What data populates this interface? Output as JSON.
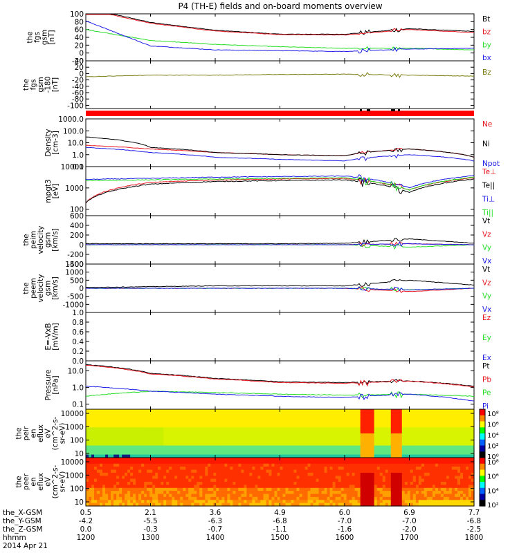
{
  "title": "P4 (TH-E) fields and on-board moments overview",
  "colors": {
    "black": "#000000",
    "red": "#e8141e",
    "green": "#22dd22",
    "blue": "#1a1ae6",
    "olive": "#7a7a10"
  },
  "panels": [
    {
      "id": "fgs",
      "ylabel": [
        "the",
        "fgs",
        "gsm",
        "[nT]"
      ],
      "ticks": [
        "100",
        "80",
        "60",
        "40",
        "20",
        "0",
        "-20"
      ],
      "tick_values": [
        100,
        80,
        60,
        40,
        20,
        0,
        -20
      ],
      "scale": "linear",
      "ylim": [
        -20,
        100
      ],
      "legend": [
        {
          "name": "Bt",
          "color": "#000000"
        },
        {
          "name": "bz",
          "color": "#e8141e"
        },
        {
          "name": "by",
          "color": "#22dd22"
        },
        {
          "name": "bx",
          "color": "#1a1ae6"
        }
      ]
    },
    {
      "id": "fgs_clock",
      "ylabel": [
        "the",
        "fgs",
        "gsm",
        "-180",
        "[nT]"
      ],
      "ticks": [
        "40",
        "20",
        "0",
        "-20",
        "-40",
        "-60",
        "-80",
        "-100"
      ],
      "tick_values": [
        40,
        20,
        0,
        -20,
        -40,
        -60,
        -80,
        -100
      ],
      "scale": "linear",
      "ylim": [
        -110,
        40
      ],
      "legend": [
        {
          "name": "Bz",
          "color": "#7a7a10"
        }
      ]
    },
    {
      "id": "density",
      "ylabel": [
        "Density",
        "[cm-3]"
      ],
      "ticks": [
        "1000.0",
        "100.0",
        "10.0",
        "1.0",
        "0.1"
      ],
      "tick_values": [
        1000,
        100,
        10,
        1,
        0.1
      ],
      "scale": "log",
      "ylim": [
        0.1,
        1000
      ],
      "legend": [
        {
          "name": "Ne",
          "color": "#e8141e"
        },
        {
          "name": "Ni",
          "color": "#000000"
        },
        {
          "name": "Npot",
          "color": "#1a1ae6"
        }
      ]
    },
    {
      "id": "temperature",
      "ylabel": [
        "mpgt3",
        "[eV]"
      ],
      "ticks": [
        "10000",
        "1000",
        "100"
      ],
      "tick_values": [
        10000,
        1000,
        100
      ],
      "scale": "log",
      "ylim": [
        50,
        10000
      ],
      "legend": [
        {
          "name": "Te⊥",
          "color": "#e8141e"
        },
        {
          "name": "Te||",
          "color": "#000000"
        },
        {
          "name": "Ti⊥",
          "color": "#1a1ae6"
        },
        {
          "name": "Ti||",
          "color": "#22dd22"
        }
      ]
    },
    {
      "id": "ion_velocity",
      "ylabel": [
        "the",
        "peim",
        "velocity",
        "gsm",
        "[km/s]"
      ],
      "ticks": [
        "600",
        "400",
        "200",
        "0",
        "-200",
        "-400"
      ],
      "tick_values": [
        600,
        400,
        200,
        0,
        -200,
        -400
      ],
      "scale": "linear",
      "ylim": [
        -400,
        600
      ],
      "legend": [
        {
          "name": "Vt",
          "color": "#000000"
        },
        {
          "name": "Vz",
          "color": "#e8141e"
        },
        {
          "name": "Vy",
          "color": "#22dd22"
        },
        {
          "name": "Vx",
          "color": "#1a1ae6"
        }
      ]
    },
    {
      "id": "electron_velocity",
      "ylabel": [
        "the",
        "peem",
        "velocity",
        "gsm",
        "[km/s]"
      ],
      "ticks": [
        "1500",
        "1000",
        "500",
        "0",
        "-500",
        "-1000"
      ],
      "tick_values": [
        1500,
        1000,
        500,
        0,
        -500,
        -1000
      ],
      "scale": "linear",
      "ylim": [
        -1500,
        1500
      ],
      "legend": [
        {
          "name": "Vt",
          "color": "#000000"
        },
        {
          "name": "Vz",
          "color": "#e8141e"
        },
        {
          "name": "Vy",
          "color": "#22dd22"
        },
        {
          "name": "Vx",
          "color": "#1a1ae6"
        }
      ]
    },
    {
      "id": "efield",
      "ylabel": [
        "E=-VxB",
        "[mV/m]"
      ],
      "ticks": [
        "1.0",
        "0.8",
        "0.6",
        "0.4",
        "0.2",
        "0.0"
      ],
      "tick_values": [
        1,
        0.8,
        0.6,
        0.4,
        0.2,
        0
      ],
      "scale": "linear",
      "ylim": [
        0,
        1
      ],
      "legend": [
        {
          "name": "Ez",
          "color": "#e8141e"
        },
        {
          "name": "Ey",
          "color": "#22dd22"
        },
        {
          "name": "Ex",
          "color": "#1a1ae6"
        }
      ]
    },
    {
      "id": "pressure",
      "ylabel": [
        "Pressure",
        "[nPa]"
      ],
      "ticks": [
        "10.0",
        "1.0",
        "0.1"
      ],
      "tick_values": [
        10,
        1,
        0.1
      ],
      "scale": "log",
      "ylim": [
        0.05,
        40
      ],
      "legend": [
        {
          "name": "Pt",
          "color": "#000000"
        },
        {
          "name": "Pb",
          "color": "#e8141e"
        },
        {
          "name": "Pe",
          "color": "#22dd22"
        },
        {
          "name": "Pi",
          "color": "#1a1ae6"
        }
      ]
    },
    {
      "id": "ion_spec",
      "ylabel": [
        "the",
        "peir",
        "en",
        "eflux",
        "eV",
        "(cm^2-s-",
        "sr-eV)"
      ],
      "ticks": [
        "10000",
        "1000",
        "100",
        "10"
      ],
      "tick_values": [
        10000,
        1000,
        100,
        10
      ],
      "scale": "log",
      "colorbar": [
        "10⁸",
        "10⁶",
        "10⁴",
        "10²",
        "10⁰"
      ]
    },
    {
      "id": "electron_spec",
      "ylabel": [
        "the",
        "peer",
        "en",
        "eflux",
        "eV",
        "(cm^2-s-",
        "sr-eV)"
      ],
      "ticks": [
        "10000",
        "1000",
        "100",
        "10"
      ],
      "tick_values": [
        10000,
        1000,
        100,
        10
      ],
      "scale": "log",
      "colorbar": [
        "10⁸",
        "10⁶",
        "10⁴",
        "10²"
      ]
    }
  ],
  "xaxis": {
    "rows": [
      {
        "label": "the_X-GSM",
        "values": [
          "0.5",
          "2.1",
          "3.6",
          "4.9",
          "6.0",
          "6.9",
          "7.7"
        ]
      },
      {
        "label": "the_Y-GSM",
        "values": [
          "-4.2",
          "-5.5",
          "-6.3",
          "-6.8",
          "-7.0",
          "-7.0",
          "-6.8"
        ]
      },
      {
        "label": "the_Z-GSM",
        "values": [
          "0.0",
          "-0.3",
          "-0.7",
          "-1.1",
          "-1.6",
          "-2.0",
          "-2.5"
        ]
      },
      {
        "label": "hhmm",
        "values": [
          "1200",
          "1300",
          "1400",
          "1500",
          "1600",
          "1700",
          "1800"
        ]
      }
    ],
    "date": "2014 Apr 21",
    "time_range": [
      1200,
      1800
    ]
  },
  "chart_data": {
    "type": "line",
    "title": "P4 (TH-E) fields and on-board moments overview",
    "x": [
      1200,
      1300,
      1400,
      1500,
      1600,
      1700,
      1800
    ],
    "xlabel": "hhmm",
    "panels": [
      {
        "id": "fgs",
        "series": [
          {
            "name": "Bt",
            "values": [
              115,
              78,
              58,
              48,
              48,
              62,
              55
            ]
          },
          {
            "name": "bz",
            "values": [
              112,
              76,
              56,
              47,
              46,
              60,
              52
            ]
          },
          {
            "name": "by",
            "values": [
              60,
              32,
              22,
              16,
              12,
              12,
              8
            ]
          },
          {
            "name": "bx",
            "values": [
              82,
              18,
              8,
              6,
              4,
              10,
              12
            ]
          }
        ]
      },
      {
        "id": "fgs_clock",
        "series": [
          {
            "name": "Bz",
            "values": [
              -10,
              -5,
              -5,
              -3,
              -2,
              -5,
              -8
            ]
          }
        ]
      },
      {
        "id": "density",
        "series": [
          {
            "name": "Ne",
            "values": [
              6,
              3,
              1.5,
              1.0,
              0.8,
              3,
              0.6
            ]
          },
          {
            "name": "Ni",
            "values": [
              30,
              4,
              1.5,
              1.0,
              0.8,
              3,
              0.6
            ]
          },
          {
            "name": "Npot",
            "values": [
              4,
              1.5,
              0.6,
              0.4,
              0.3,
              1,
              0.3
            ]
          }
        ]
      },
      {
        "id": "temperature",
        "series": [
          {
            "name": "Te⊥",
            "values": [
              200,
              1800,
              2400,
              2600,
              2800,
              800,
              3000
            ]
          },
          {
            "name": "Te||",
            "values": [
              200,
              1500,
              2000,
              2200,
              2400,
              600,
              2600
            ]
          },
          {
            "name": "Ti⊥",
            "values": [
              2500,
              2800,
              3200,
              3400,
              3600,
              1000,
              3800
            ]
          },
          {
            "name": "Ti||",
            "values": [
              2200,
              2400,
              2600,
              2800,
              3000,
              800,
              3200
            ]
          }
        ]
      },
      {
        "id": "ion_velocity",
        "series": [
          {
            "name": "Vt",
            "values": [
              20,
              20,
              20,
              20,
              30,
              120,
              30
            ]
          },
          {
            "name": "Vz",
            "values": [
              0,
              0,
              0,
              0,
              0,
              20,
              0
            ]
          },
          {
            "name": "Vy",
            "values": [
              0,
              0,
              0,
              0,
              0,
              -50,
              0
            ]
          },
          {
            "name": "Vx",
            "values": [
              0,
              0,
              0,
              0,
              0,
              20,
              0
            ]
          }
        ]
      },
      {
        "id": "electron_velocity",
        "series": [
          {
            "name": "Vt",
            "values": [
              50,
              100,
              150,
              150,
              150,
              500,
              200
            ]
          },
          {
            "name": "Vz",
            "values": [
              0,
              0,
              0,
              0,
              0,
              -200,
              0
            ]
          },
          {
            "name": "Vy",
            "values": [
              0,
              0,
              0,
              0,
              0,
              -100,
              0
            ]
          },
          {
            "name": "Vx",
            "values": [
              0,
              0,
              0,
              0,
              0,
              -100,
              0
            ]
          }
        ]
      },
      {
        "id": "pressure",
        "series": [
          {
            "name": "Pt",
            "values": [
              24,
              7,
              3.5,
              2.2,
              2.0,
              2.5,
              1.2
            ]
          },
          {
            "name": "Pb",
            "values": [
              22,
              6.5,
              3.2,
              2.0,
              1.8,
              2.4,
              1.1
            ]
          },
          {
            "name": "Pe",
            "values": [
              0.3,
              0.6,
              0.5,
              0.4,
              0.35,
              0.4,
              0.3
            ]
          },
          {
            "name": "Pi",
            "values": [
              1.2,
              0.6,
              0.4,
              0.3,
              0.25,
              0.4,
              0.15
            ]
          }
        ]
      }
    ]
  }
}
